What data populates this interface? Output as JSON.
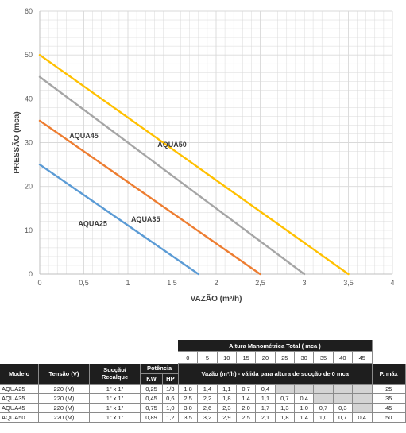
{
  "colors": {
    "AQUA25": "#5b9bd5",
    "AQUA35": "#ed7d31",
    "AQUA45": "#a5a5a5",
    "AQUA50": "#ffc000",
    "grid": "#d9d9d9",
    "axis": "#bfbfbf",
    "header_bg": "#1e1e1e",
    "empty_cell": "#d4d4d4"
  },
  "chart_data": {
    "type": "line",
    "title": "",
    "xlabel": "VAZÃO (m³/h)",
    "ylabel": "PRESSÃO (mca)",
    "xlim": [
      0,
      4
    ],
    "ylim": [
      0,
      60
    ],
    "x_ticks": [
      "0",
      "0,5",
      "1",
      "1,5",
      "2",
      "2,5",
      "3",
      "3,5",
      "4"
    ],
    "y_ticks": [
      "0",
      "10",
      "20",
      "30",
      "40",
      "50",
      "60"
    ],
    "grid": true,
    "legend": "none",
    "series": [
      {
        "name": "AQUA25",
        "x": [
          0,
          1.8
        ],
        "y": [
          25,
          0
        ]
      },
      {
        "name": "AQUA35",
        "x": [
          0,
          2.5
        ],
        "y": [
          35,
          0
        ]
      },
      {
        "name": "AQUA45",
        "x": [
          0,
          3.0
        ],
        "y": [
          45,
          0
        ]
      },
      {
        "name": "AQUA50",
        "x": [
          0,
          3.5
        ],
        "y": [
          50,
          0
        ]
      }
    ],
    "annotations": [
      {
        "text": "AQUA25",
        "series": "AQUA25",
        "x": 0.6,
        "y": 11
      },
      {
        "text": "AQUA35",
        "series": "AQUA35",
        "x": 1.2,
        "y": 12
      },
      {
        "text": "AQUA45",
        "series": "AQUA45",
        "x": 0.5,
        "y": 31
      },
      {
        "text": "AQUA50",
        "series": "AQUA50",
        "x": 1.5,
        "y": 29
      }
    ]
  },
  "table": {
    "title": "Altura Manométrica Total ( mca )",
    "heights": [
      "0",
      "5",
      "10",
      "15",
      "20",
      "25",
      "30",
      "35",
      "40",
      "45"
    ],
    "flow_caption": "Vazão  (m³/h) - válida para altura de sucção de 0 mca",
    "headers": {
      "modelo": "Modelo",
      "tensao": "Tensão (V)",
      "succao": "Sucção/",
      "recalque": "Recalque",
      "potencia": "Potência",
      "kw": "KW",
      "hp": "HP",
      "pmax": "P. máx"
    },
    "rows": [
      {
        "modelo": "AQUA25",
        "tensao": "220 (M)",
        "succao": "1\" x 1\"",
        "kw": "0,25",
        "hp": "1/3",
        "vazao": [
          "1,8",
          "1,4",
          "1,1",
          "0,7",
          "0,4",
          "",
          "",
          "",
          "",
          ""
        ],
        "pmax": "25"
      },
      {
        "modelo": "AQUA35",
        "tensao": "220 (M)",
        "succao": "1\" x 1\"",
        "kw": "0,45",
        "hp": "0,6",
        "vazao": [
          "2,5",
          "2,2",
          "1,8",
          "1,4",
          "1,1",
          "0,7",
          "0,4",
          "",
          "",
          ""
        ],
        "pmax": "35"
      },
      {
        "modelo": "AQUA45",
        "tensao": "220 (M)",
        "succao": "1\" x 1\"",
        "kw": "0,75",
        "hp": "1,0",
        "vazao": [
          "3,0",
          "2,6",
          "2,3",
          "2,0",
          "1,7",
          "1,3",
          "1,0",
          "0,7",
          "0,3",
          ""
        ],
        "pmax": "45"
      },
      {
        "modelo": "AQUA50",
        "tensao": "220 (M)",
        "succao": "1\" x 1\"",
        "kw": "0,89",
        "hp": "1,2",
        "vazao": [
          "3,5",
          "3,2",
          "2,9",
          "2,5",
          "2,1",
          "1,8",
          "1,4",
          "1,0",
          "0,7",
          "0,4"
        ],
        "pmax": "50"
      }
    ]
  }
}
